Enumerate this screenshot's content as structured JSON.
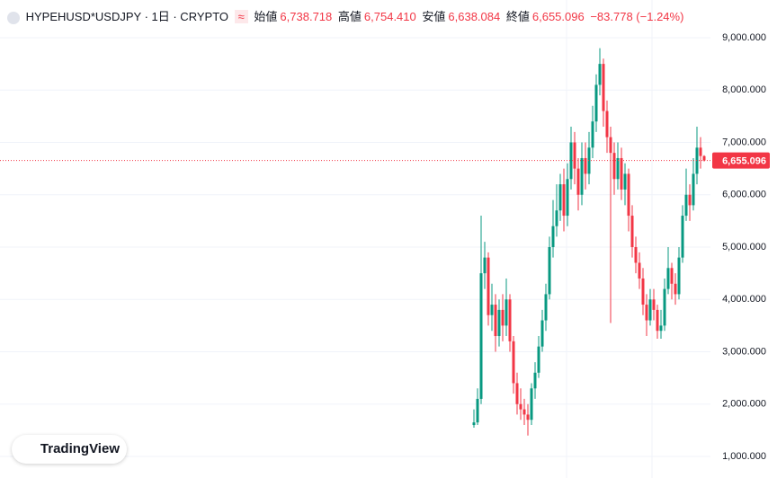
{
  "header": {
    "symbol": "HYPEHUSD*USDJPY · 1日 · CRYPTO",
    "open_label": "始値",
    "open": "6,738.718",
    "high_label": "高値",
    "high": "6,754.410",
    "low_label": "安値",
    "low": "6,638.084",
    "close_label": "終値",
    "close": "6,655.096",
    "change": "−83.778 (−1.24%)"
  },
  "branding": "TradingView",
  "chart_data": {
    "type": "candlestick",
    "categories": [
      null,
      null,
      null,
      null,
      null,
      null,
      null,
      null,
      null,
      null,
      null,
      null,
      null,
      null,
      null,
      null,
      null,
      null,
      null,
      null,
      null,
      null,
      null,
      null,
      null,
      null,
      null,
      null,
      null,
      null,
      null,
      null,
      null,
      null,
      null,
      null,
      null,
      null,
      null,
      null,
      null,
      null,
      null,
      null,
      null,
      null,
      null,
      null,
      null,
      null,
      null,
      null,
      null,
      null,
      null,
      null,
      null,
      null,
      null,
      null,
      null,
      null,
      null,
      null,
      null
    ],
    "open": [
      1600,
      1650,
      2100,
      4500,
      4800,
      3700,
      3900,
      3300,
      3800,
      3500,
      4000,
      3200,
      2400,
      2000,
      1900,
      1800,
      1700,
      2300,
      2600,
      3100,
      3600,
      4100,
      5000,
      5400,
      5700,
      6200,
      5600,
      6300,
      7000,
      6500,
      6000,
      6700,
      6400,
      6900,
      7400,
      8100,
      8500,
      7600,
      7100,
      6800,
      6300,
      6700,
      6100,
      6400,
      5600,
      5000,
      4700,
      4400,
      3900,
      3600,
      4000,
      3800,
      3400,
      3500,
      4200,
      4600,
      4300,
      4100,
      4800,
      5600,
      6000,
      5800,
      6400,
      6900,
      6738.718
    ],
    "high": [
      1900,
      2300,
      5600,
      5100,
      4900,
      4300,
      4100,
      4000,
      4100,
      4400,
      4100,
      3300,
      2600,
      2300,
      2100,
      2000,
      2400,
      2800,
      3300,
      3800,
      4300,
      5200,
      5900,
      6200,
      6400,
      6500,
      6600,
      7300,
      7200,
      6700,
      7000,
      7000,
      7200,
      7700,
      8300,
      8800,
      8600,
      7800,
      7300,
      7000,
      7000,
      6900,
      6600,
      6500,
      5800,
      5200,
      4900,
      4600,
      4100,
      4200,
      4200,
      3900,
      3800,
      4400,
      5000,
      4700,
      4500,
      5000,
      5800,
      6500,
      6200,
      6700,
      7300,
      7100,
      6754.41
    ],
    "low": [
      1550,
      1600,
      2000,
      4200,
      3500,
      3400,
      3000,
      3100,
      3200,
      3300,
      3000,
      2200,
      1800,
      1700,
      1600,
      1400,
      1600,
      2100,
      2500,
      3000,
      3400,
      4000,
      4800,
      5200,
      5500,
      5300,
      5400,
      6100,
      6200,
      5700,
      5800,
      6100,
      6200,
      6700,
      7200,
      7900,
      7300,
      6800,
      3550,
      6000,
      6100,
      5900,
      5800,
      5300,
      4800,
      4500,
      4200,
      3700,
      3300,
      3500,
      3600,
      3250,
      3250,
      3400,
      4100,
      4000,
      3900,
      4000,
      4700,
      5500,
      5500,
      5700,
      6200,
      6500,
      6638.084
    ],
    "close": [
      1650,
      2100,
      4500,
      4800,
      3700,
      3900,
      3300,
      3800,
      3500,
      4000,
      3200,
      2400,
      2000,
      1900,
      1800,
      1700,
      2300,
      2600,
      3100,
      3600,
      4100,
      5000,
      5400,
      5700,
      6200,
      5600,
      6300,
      7000,
      6500,
      6000,
      6700,
      6400,
      6900,
      7400,
      8100,
      8500,
      7600,
      7100,
      6800,
      6300,
      6700,
      6100,
      6400,
      5600,
      5000,
      4700,
      4400,
      3900,
      3600,
      4000,
      3800,
      3400,
      3500,
      4200,
      4600,
      4300,
      4100,
      4800,
      5600,
      6000,
      5800,
      6400,
      6900,
      6740,
      6655.096
    ],
    "up_color": "#089981",
    "down_color": "#f23645",
    "last_price": {
      "value": 6655.096,
      "label": "6,655.096"
    },
    "ylim": [
      588,
      9721
    ],
    "yticks": [
      {
        "value": 1000,
        "label": "1,000.000"
      },
      {
        "value": 2000,
        "label": "2,000.000"
      },
      {
        "value": 3000,
        "label": "3,000.000"
      },
      {
        "value": 4000,
        "label": "4,000.000"
      },
      {
        "value": 5000,
        "label": "5,000.000"
      },
      {
        "value": 6000,
        "label": "6,000.000"
      },
      {
        "value": 7000,
        "label": "7,000.000"
      },
      {
        "value": 8000,
        "label": "8,000.000"
      },
      {
        "value": 9000,
        "label": "9,000.000"
      }
    ],
    "grid": true
  }
}
